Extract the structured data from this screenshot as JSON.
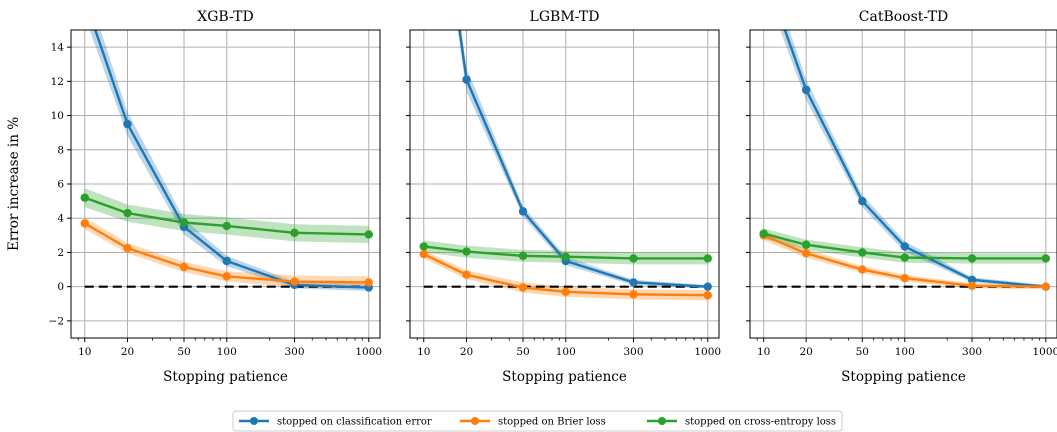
{
  "chart_data": [
    {
      "type": "line",
      "title": "XGB-TD",
      "xlabel": "Stopping patience",
      "ylabel": "Error increase in %",
      "xscale": "log",
      "xlim": [
        8,
        1200
      ],
      "ylim": [
        -3,
        15
      ],
      "xticks": [
        10,
        20,
        50,
        100,
        300,
        1000
      ],
      "yticks": [
        -2,
        0,
        2,
        4,
        6,
        8,
        10,
        12,
        14
      ],
      "grid": true,
      "x": [
        10,
        20,
        50,
        100,
        300,
        1000
      ],
      "series": [
        {
          "name": "stopped on classification error",
          "color": "#1f77b4",
          "values": [
            16.8,
            9.5,
            3.5,
            1.5,
            0.1,
            -0.05
          ],
          "band": [
            1.0,
            0.7,
            0.45,
            0.3,
            0.2,
            0.2
          ]
        },
        {
          "name": "stopped on Brier loss",
          "color": "#ff7f0e",
          "values": [
            3.7,
            2.25,
            1.15,
            0.6,
            0.3,
            0.25
          ],
          "band": [
            0.35,
            0.3,
            0.3,
            0.3,
            0.35,
            0.35
          ]
        },
        {
          "name": "stopped on cross-entropy loss",
          "color": "#2ca02c",
          "values": [
            5.2,
            4.3,
            3.75,
            3.55,
            3.15,
            3.05
          ],
          "band": [
            0.55,
            0.5,
            0.5,
            0.5,
            0.5,
            0.5
          ]
        }
      ],
      "reference_line": {
        "y": 0,
        "style": "dashed",
        "color": "#000000"
      }
    },
    {
      "type": "line",
      "title": "LGBM-TD",
      "xlabel": "Stopping patience",
      "ylabel": "",
      "xscale": "log",
      "xlim": [
        8,
        1200
      ],
      "ylim": [
        -3,
        15
      ],
      "xticks": [
        10,
        20,
        50,
        100,
        300,
        1000
      ],
      "yticks": [
        -2,
        0,
        2,
        4,
        6,
        8,
        10,
        12,
        14
      ],
      "grid": true,
      "x": [
        10,
        20,
        50,
        100,
        300,
        1000
      ],
      "series": [
        {
          "name": "stopped on classification error",
          "color": "#1f77b4",
          "values": [
            30.0,
            12.1,
            4.4,
            1.5,
            0.25,
            0.0
          ],
          "band": [
            1.2,
            0.7,
            0.3,
            0.25,
            0.15,
            0.1
          ]
        },
        {
          "name": "stopped on Brier loss",
          "color": "#ff7f0e",
          "values": [
            1.9,
            0.7,
            -0.05,
            -0.3,
            -0.45,
            -0.5
          ],
          "band": [
            0.25,
            0.25,
            0.3,
            0.3,
            0.3,
            0.3
          ]
        },
        {
          "name": "stopped on cross-entropy loss",
          "color": "#2ca02c",
          "values": [
            2.35,
            2.05,
            1.8,
            1.75,
            1.65,
            1.65
          ],
          "band": [
            0.35,
            0.35,
            0.35,
            0.35,
            0.35,
            0.35
          ]
        }
      ],
      "reference_line": {
        "y": 0,
        "style": "dashed",
        "color": "#000000"
      }
    },
    {
      "type": "line",
      "title": "CatBoost-TD",
      "xlabel": "Stopping patience",
      "ylabel": "",
      "xscale": "log",
      "xlim": [
        8,
        1200
      ],
      "ylim": [
        -3,
        15
      ],
      "xticks": [
        10,
        20,
        50,
        100,
        300,
        1000
      ],
      "yticks": [
        -2,
        0,
        2,
        4,
        6,
        8,
        10,
        12,
        14
      ],
      "grid": true,
      "x": [
        10,
        20,
        50,
        100,
        300,
        1000
      ],
      "series": [
        {
          "name": "stopped on classification error",
          "color": "#1f77b4",
          "values": [
            18.5,
            11.5,
            5.0,
            2.35,
            0.4,
            0.0
          ],
          "band": [
            0.9,
            0.6,
            0.35,
            0.3,
            0.15,
            0.1
          ]
        },
        {
          "name": "stopped on Brier loss",
          "color": "#ff7f0e",
          "values": [
            3.0,
            1.95,
            1.0,
            0.5,
            0.05,
            0.0
          ],
          "band": [
            0.3,
            0.25,
            0.2,
            0.2,
            0.15,
            0.15
          ]
        },
        {
          "name": "stopped on cross-entropy loss",
          "color": "#2ca02c",
          "values": [
            3.1,
            2.45,
            2.0,
            1.7,
            1.65,
            1.65
          ],
          "band": [
            0.3,
            0.3,
            0.3,
            0.3,
            0.3,
            0.3
          ]
        }
      ],
      "reference_line": {
        "y": 0,
        "style": "dashed",
        "color": "#000000"
      }
    }
  ],
  "legend": {
    "placement": "bottom-center",
    "entries": [
      "stopped on classification error",
      "stopped on Brier loss",
      "stopped on cross-entropy loss"
    ]
  }
}
